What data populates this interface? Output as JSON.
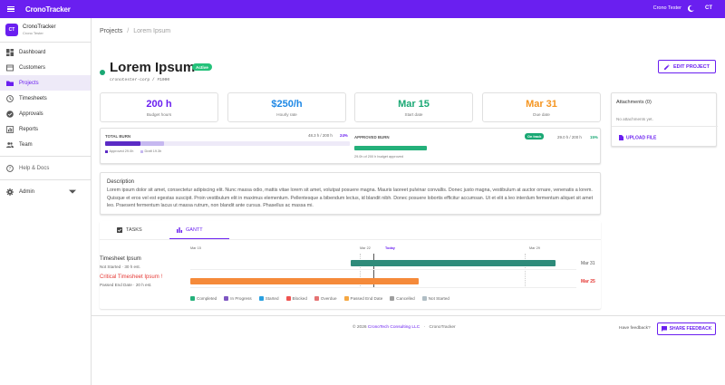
{
  "appbar": {
    "brand": "CronoTracker",
    "user_name": "Crono Tester",
    "initials": "CT"
  },
  "sidebar": {
    "org_initials": "CT",
    "org_name": "CronoTracker",
    "org_sub": "Crono Tester",
    "items": [
      {
        "label": "Dashboard",
        "icon": "dashboard-icon"
      },
      {
        "label": "Customers",
        "icon": "customers-icon"
      },
      {
        "label": "Projects",
        "icon": "folder-icon",
        "active": true
      },
      {
        "label": "Timesheets",
        "icon": "clock-icon"
      },
      {
        "label": "Approvals",
        "icon": "check-circle-icon"
      },
      {
        "label": "Reports",
        "icon": "chart-icon"
      },
      {
        "label": "Team",
        "icon": "people-icon"
      },
      {
        "label": "Help & Docs",
        "icon": "help-icon"
      },
      {
        "label": "Admin",
        "icon": "gear-icon"
      }
    ]
  },
  "breadcrumb": {
    "root": "Projects",
    "separator": "/",
    "current": "Lorem Ipsum"
  },
  "project": {
    "title": "Lorem Ipsum",
    "status": "Active",
    "sub_id": "cronotester-corp / #1000",
    "edit_label": "EDIT PROJECT"
  },
  "stats": [
    {
      "value": "200 h",
      "label": "Budget hours",
      "color": "#6a1ff0"
    },
    {
      "value": "$250/h",
      "label": "Hourly rate",
      "color": "#1e88e5"
    },
    {
      "value": "Mar 15",
      "label": "Start date",
      "color": "#1aa874"
    },
    {
      "value": "Mar 31",
      "label": "Due date",
      "color": "#f59520"
    }
  ],
  "burn": {
    "total_label": "TOTAL BURN",
    "total_value": "48.3 h / 200 h",
    "total_pct": "24%",
    "approved_fraction": 0.145,
    "draft_fraction": 0.097,
    "approved_legend": "Approved 29.0h",
    "draft_legend": "Draft 19.3h",
    "approved_label": "APPROVED BURN",
    "on_track": "On track",
    "approved_value": "29.0 h / 200 h",
    "approved_pct": "15%",
    "approved_note": "29.0h of 200 h budget approved",
    "approved_bar_fraction": 0.145
  },
  "attachments": {
    "title": "Attachments (0)",
    "empty": "No attachments yet.",
    "upload": "UPLOAD FILE"
  },
  "description": {
    "title": "Description",
    "text": "Lorem ipsum dolor sit amet, consectetur adipiscing elit. Nunc massa odio, mattis vitae lorem sit amet, volutpat posuere magna. Mauris laoreet pulvinar convallis. Donec justo magna, vestibulum at auctor ornare, venenatis a lorem. Quisque et eros vel est egestas suscipit. Proin vestibulum elit in maximus elementum. Pellentesque a bibendum lectus, id blandit nibh. Donec posuere lobortis efficitur accumsan. Ut et elit a leo interdum fermentum aliquet sit amet leo. Praesent fermentum lacus ut massa rutrum, non blandit ante cursus. Phasellus ac massa mi."
  },
  "gantt": {
    "tabs": [
      "TASKS",
      "GANTT"
    ],
    "active_tab": "GANTT",
    "ticks": [
      "Mar 15",
      "Mar 22",
      "Today",
      "Mar 29"
    ],
    "rows": [
      {
        "name": "Timesheet Ipsum",
        "sub": "Not Started · 30 h est.",
        "due": "Mar 31",
        "critical": false,
        "start": "Mar 22",
        "end": "Mar 31",
        "color": "#2e8b7a"
      },
      {
        "name": "Critical Timesheet Ipsum !",
        "sub": "Passed End Date · 20 h est.",
        "due": "Mar 25",
        "critical": true,
        "start": "Mar 15",
        "end": "Mar 25",
        "color": "#f58a3a"
      }
    ],
    "legend": [
      {
        "label": "Completed",
        "color": "#24b07a"
      },
      {
        "label": "In Progress",
        "color": "#7e57c2"
      },
      {
        "label": "Started",
        "color": "#29a0e0"
      },
      {
        "label": "Blocked",
        "color": "#ef5350"
      },
      {
        "label": "Overdue",
        "color": "#e57373"
      },
      {
        "label": "Passed End Date",
        "color": "#f5a742"
      },
      {
        "label": "Cancelled",
        "color": "#9e9e9e"
      },
      {
        "label": "Not Started",
        "color": "#b0bec5"
      }
    ]
  },
  "footer": {
    "copyright_prefix": "© 2026",
    "company": "CronoTech Consulting LLC",
    "separator": "·",
    "app": "CronoTracker",
    "feedback_q": "Have feedback?",
    "share": "SHARE FEEDBACK"
  }
}
